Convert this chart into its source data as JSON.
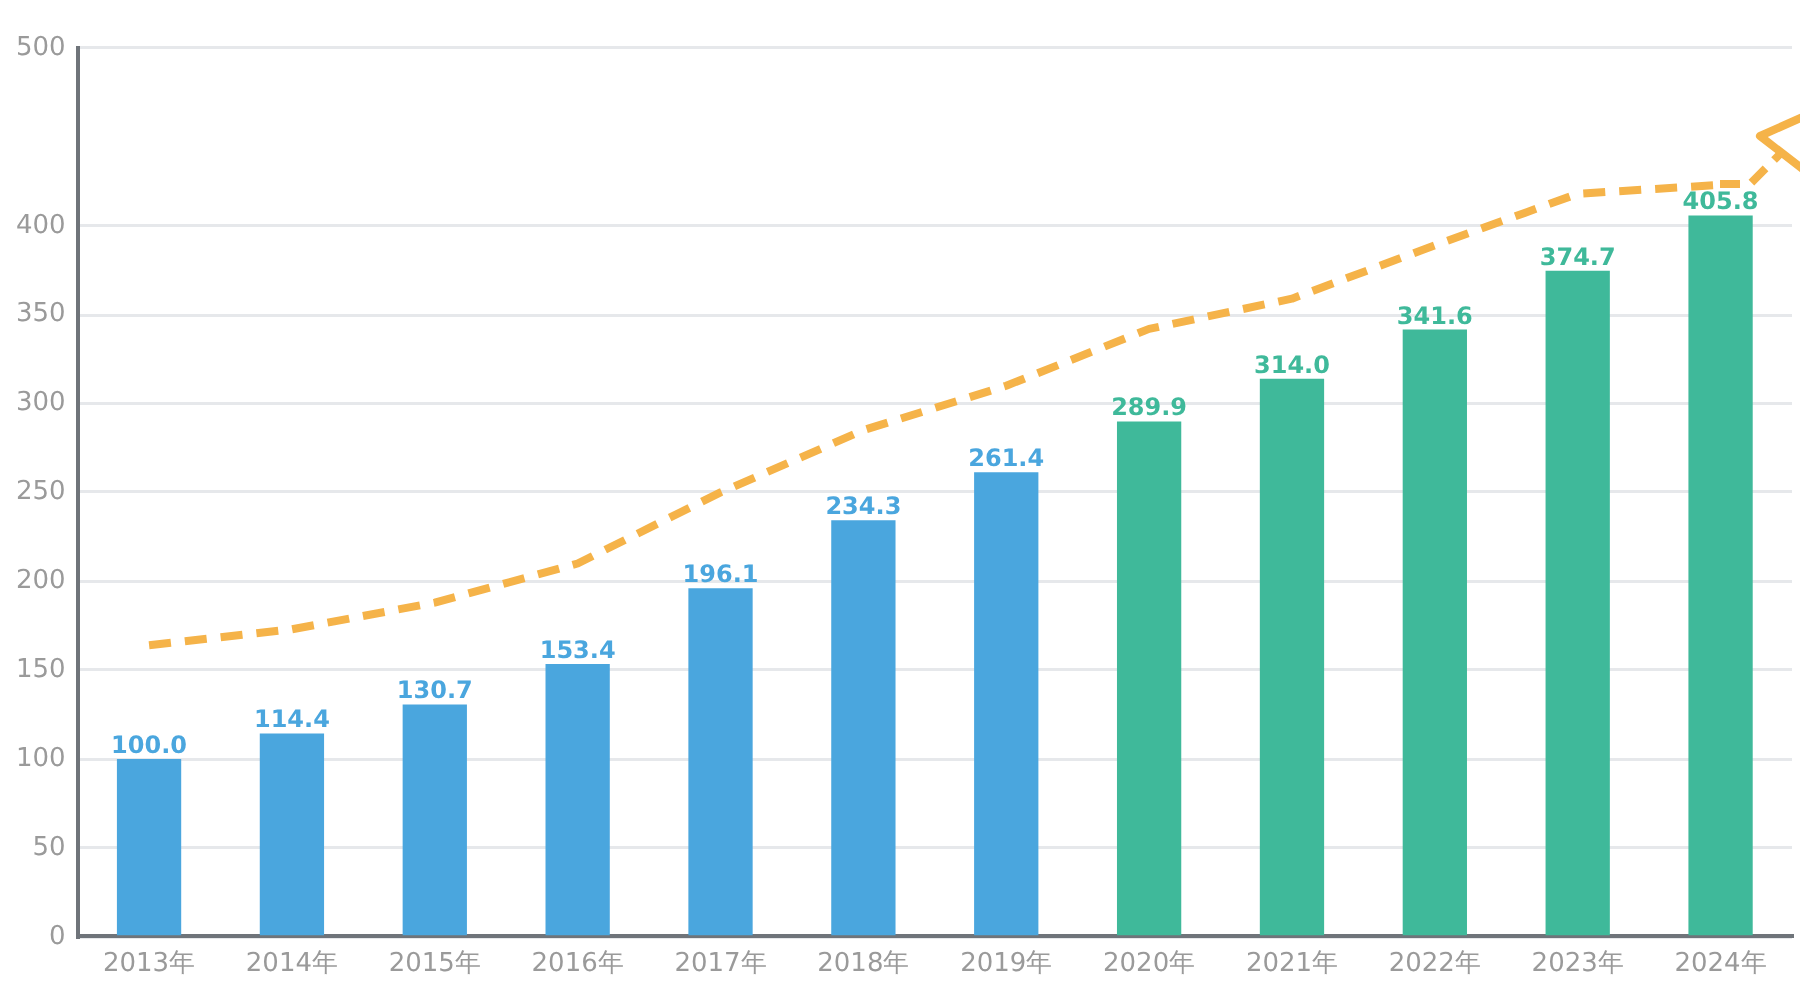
{
  "chart_data": {
    "type": "bar",
    "categories": [
      "2013年",
      "2014年",
      "2015年",
      "2016年",
      "2017年",
      "2018年",
      "2019年",
      "2020年",
      "2021年",
      "2022年",
      "2023年",
      "2024年"
    ],
    "series": [
      {
        "values": [
          100.0,
          114.4,
          130.7,
          153.4,
          196.1,
          234.3,
          261.4,
          289.9,
          314.0,
          341.6,
          374.7,
          405.8
        ],
        "colors": [
          "#4aa6de",
          "#4aa6de",
          "#4aa6de",
          "#4aa6de",
          "#4aa6de",
          "#4aa6de",
          "#4aa6de",
          "#3fb99a",
          "#3fb99a",
          "#3fb99a",
          "#3fb99a",
          "#3fb99a"
        ],
        "value_labels": [
          "100.0",
          "114.4",
          "130.7",
          "153.4",
          "196.1",
          "234.3",
          "261.4",
          "289.9",
          "314.0",
          "341.6",
          "374.7",
          "405.8"
        ]
      },
      {
        "type": "line",
        "color": "#f5b349",
        "values": [
          164,
          173,
          188,
          210,
          250,
          285,
          310,
          342,
          359,
          389,
          418,
          423
        ],
        "line_style": "dashed",
        "marker": "none"
      }
    ],
    "ylim": [
      0,
      500
    ],
    "yticks": [
      0,
      50,
      100,
      150,
      200,
      250,
      300,
      350,
      400,
      500
    ],
    "grid": "y",
    "legend": false
  }
}
